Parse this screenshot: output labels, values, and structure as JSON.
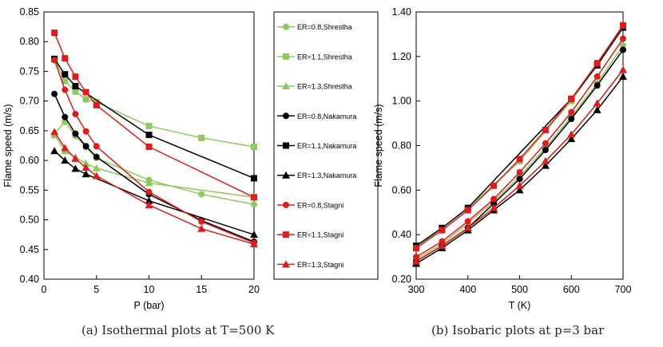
{
  "captions": {
    "a": "(a) Isothermal plots at T=500 K",
    "b": "(b) Isobaric plots at p=3 bar"
  },
  "colors": {
    "shrestha": "#8fc85f",
    "nakamura": "#000000",
    "stagni": "#e01b1b"
  },
  "chart_data": [
    {
      "type": "line",
      "xlabel": "P (bar)",
      "ylabel": "Flame speed (m/s)",
      "xlim": [
        0,
        20
      ],
      "ylim": [
        0.4,
        0.85
      ],
      "xticks": [
        "0",
        "5",
        "10",
        "15",
        "20"
      ],
      "yticks": [
        "0.40",
        "0.45",
        "0.50",
        "0.55",
        "0.60",
        "0.65",
        "0.70",
        "0.75",
        "0.80",
        "0.85"
      ],
      "grid": false,
      "legend_position": "right, outside plot area",
      "series": [
        {
          "name": "ER=0.8,Shrestha",
          "color": "#8fc85f",
          "marker": "circle",
          "x": [
            1,
            2,
            3,
            4,
            5,
            10,
            15,
            20
          ],
          "y": [
            0.645,
            0.665,
            0.641,
            0.622,
            0.604,
            0.567,
            0.543,
            0.526
          ]
        },
        {
          "name": "ER=1.1,Shrestha",
          "color": "#8fc85f",
          "marker": "square",
          "x": [
            1,
            2,
            3,
            4,
            5,
            10,
            15,
            20
          ],
          "y": [
            0.771,
            0.734,
            0.716,
            0.703,
            0.698,
            0.658,
            0.638,
            0.623
          ]
        },
        {
          "name": "ER=1.3,Shrestha",
          "color": "#8fc85f",
          "marker": "triangle",
          "x": [
            1,
            2,
            3,
            4,
            5,
            10,
            20
          ],
          "y": [
            0.643,
            0.616,
            0.605,
            0.595,
            0.587,
            0.562,
            0.538
          ]
        },
        {
          "name": "ER=0.8,Nakamura",
          "color": "#000000",
          "marker": "circle",
          "x": [
            1,
            2,
            3,
            4,
            5,
            10,
            15,
            20
          ],
          "y": [
            0.712,
            0.673,
            0.645,
            0.624,
            0.606,
            0.543,
            0.499,
            0.463
          ]
        },
        {
          "name": "ER=1.1,Nakamura",
          "color": "#000000",
          "marker": "square",
          "x": [
            1,
            2,
            3,
            10,
            20
          ],
          "y": [
            0.771,
            0.745,
            0.725,
            0.643,
            0.57
          ]
        },
        {
          "name": "ER=1.3,Nakamura",
          "color": "#000000",
          "marker": "triangle",
          "x": [
            1,
            2,
            3,
            4,
            10,
            20
          ],
          "y": [
            0.616,
            0.6,
            0.586,
            0.577,
            0.532,
            0.475
          ]
        },
        {
          "name": "ER=0.8,Stagni",
          "color": "#e01b1b",
          "marker": "circle",
          "x": [
            1,
            2,
            3,
            4,
            5,
            10,
            15,
            20
          ],
          "y": [
            0.769,
            0.719,
            0.678,
            0.649,
            0.624,
            0.547,
            0.497,
            0.461
          ]
        },
        {
          "name": "ER=1.1,Stagni",
          "color": "#e01b1b",
          "marker": "square",
          "x": [
            1,
            2,
            3,
            4,
            5,
            10,
            20
          ],
          "y": [
            0.815,
            0.772,
            0.741,
            0.715,
            0.693,
            0.623,
            0.538
          ]
        },
        {
          "name": "ER=1.3,Stagni",
          "color": "#e01b1b",
          "marker": "triangle",
          "x": [
            1,
            2,
            3,
            4,
            5,
            10,
            15,
            20
          ],
          "y": [
            0.648,
            0.621,
            0.603,
            0.588,
            0.574,
            0.525,
            0.485,
            0.459
          ]
        }
      ]
    },
    {
      "type": "line",
      "xlabel": "T (K)",
      "ylabel": "Flame speed (m/s)",
      "xlim": [
        300,
        700
      ],
      "ylim": [
        0.2,
        1.4
      ],
      "xticks": [
        "300",
        "400",
        "500",
        "600",
        "700"
      ],
      "yticks": [
        "0.20",
        "0.40",
        "0.60",
        "0.80",
        "1.00",
        "1.20",
        "1.40"
      ],
      "grid": false,
      "legend_position": "none",
      "series": [
        {
          "name": "ER=0.8,Shrestha",
          "color": "#8fc85f",
          "marker": "circle",
          "x": [
            300,
            350,
            400,
            450,
            500,
            550,
            600,
            650,
            700
          ],
          "y": [
            0.29,
            0.36,
            0.45,
            0.55,
            0.66,
            0.79,
            0.93,
            1.08,
            1.25
          ]
        },
        {
          "name": "ER=1.1,Shrestha",
          "color": "#8fc85f",
          "marker": "square",
          "x": [
            300,
            400,
            500,
            600,
            700
          ],
          "y": [
            0.34,
            0.52,
            0.73,
            1.0,
            1.33
          ]
        },
        {
          "name": "ER=1.3,Shrestha",
          "color": "#8fc85f",
          "marker": "triangle",
          "x": [
            300,
            350,
            400,
            450,
            500,
            550,
            600,
            650,
            700
          ],
          "y": [
            0.28,
            0.35,
            0.43,
            0.52,
            0.62,
            0.73,
            0.85,
            0.99,
            1.14
          ]
        },
        {
          "name": "ER=0.8,Nakamura",
          "color": "#000000",
          "marker": "circle",
          "x": [
            300,
            350,
            400,
            450,
            500,
            550,
            600,
            650,
            700
          ],
          "y": [
            0.28,
            0.35,
            0.43,
            0.54,
            0.65,
            0.78,
            0.92,
            1.07,
            1.23
          ]
        },
        {
          "name": "ER=1.1,Nakamura",
          "color": "#000000",
          "marker": "square",
          "x": [
            300,
            350,
            400,
            600,
            650,
            700
          ],
          "y": [
            0.35,
            0.43,
            0.52,
            1.01,
            1.16,
            1.33
          ]
        },
        {
          "name": "ER=1.3,Nakamura",
          "color": "#000000",
          "marker": "triangle",
          "x": [
            300,
            350,
            400,
            450,
            500,
            550,
            600,
            650,
            700
          ],
          "y": [
            0.27,
            0.34,
            0.42,
            0.51,
            0.6,
            0.71,
            0.83,
            0.96,
            1.11
          ]
        },
        {
          "name": "ER=0.8,Stagni",
          "color": "#e01b1b",
          "marker": "circle",
          "x": [
            300,
            350,
            400,
            450,
            500,
            550,
            600,
            650,
            700
          ],
          "y": [
            0.3,
            0.37,
            0.46,
            0.56,
            0.68,
            0.81,
            0.95,
            1.11,
            1.28
          ]
        },
        {
          "name": "ER=1.1,Stagni",
          "color": "#e01b1b",
          "marker": "square",
          "x": [
            300,
            350,
            400,
            450,
            500,
            550,
            600,
            650,
            700
          ],
          "y": [
            0.34,
            0.42,
            0.51,
            0.62,
            0.74,
            0.87,
            1.01,
            1.17,
            1.34
          ]
        },
        {
          "name": "ER=1.3,Stagni",
          "color": "#e01b1b",
          "marker": "triangle",
          "x": [
            300,
            350,
            400,
            450,
            500,
            550,
            600,
            650,
            700
          ],
          "y": [
            0.28,
            0.35,
            0.43,
            0.52,
            0.62,
            0.73,
            0.85,
            0.99,
            1.14
          ]
        }
      ]
    }
  ]
}
